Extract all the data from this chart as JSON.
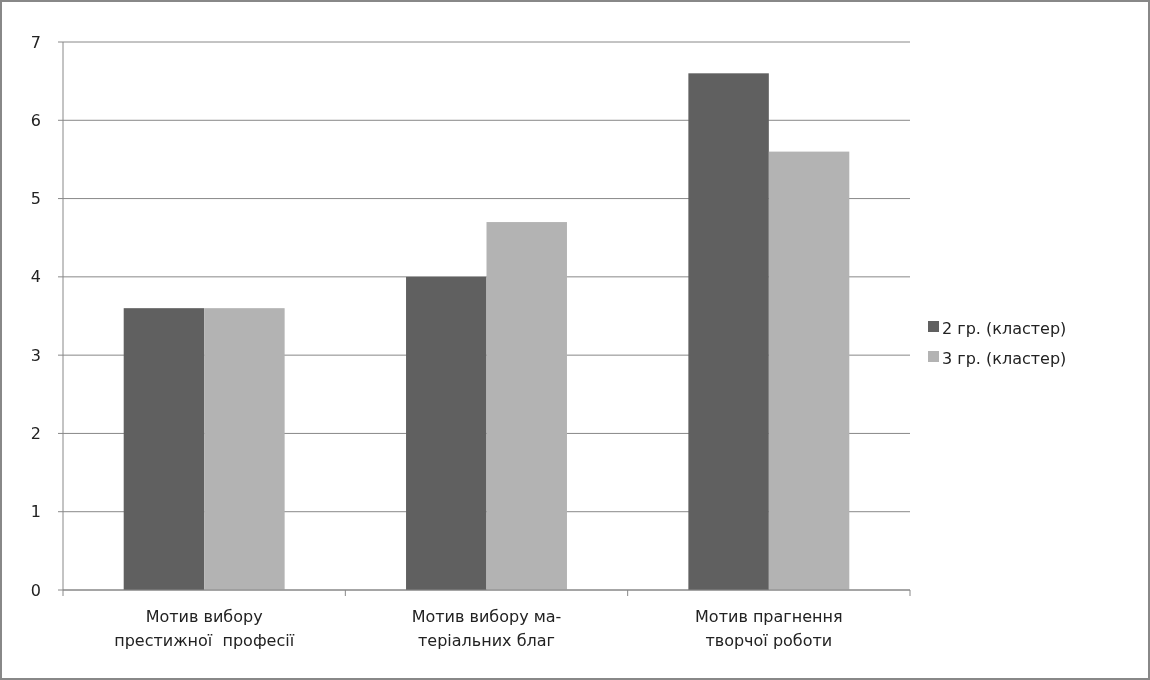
{
  "chart_data": {
    "type": "bar",
    "categories": [
      "Мотив вибору\nпрестижної  професії",
      "Мотив вибору ма-\nтеріальних благ",
      "Мотив прагнення\nтворчої роботи"
    ],
    "series": [
      {
        "name": "2 гр. (кластер)",
        "color": "#606060",
        "values": [
          3.6,
          4.0,
          6.6
        ]
      },
      {
        "name": "3 гр. (кластер)",
        "color": "#b3b3b3",
        "values": [
          3.6,
          4.7,
          5.6
        ]
      }
    ],
    "ylim": [
      0,
      7
    ],
    "yticks": [
      0,
      1,
      2,
      3,
      4,
      5,
      6,
      7
    ],
    "grid": "y",
    "legend": "right"
  }
}
